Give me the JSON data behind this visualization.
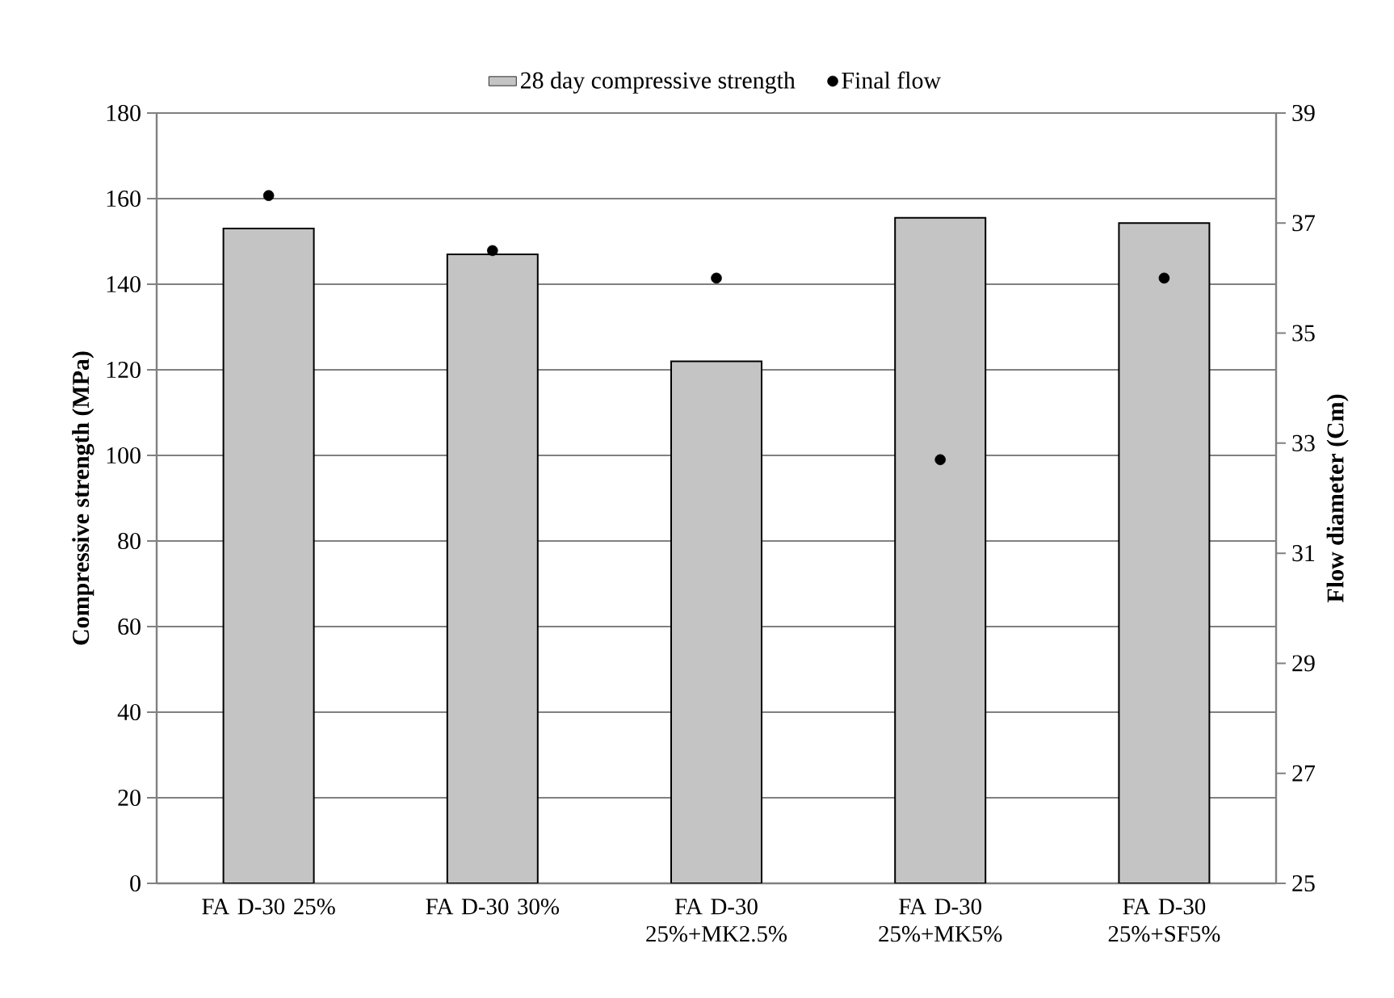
{
  "chart_data": {
    "type": "bar",
    "categories": [
      "FA D-30 25%",
      "FA D-30 30%",
      "FA D-30 25%+MK2.5%",
      "FA D-30 25%+MK5%",
      "FA D-30 25%+SF5%"
    ],
    "ylabel": "Compressive strength (MPa)",
    "y2label": "Flow  diameter (Cm)",
    "ylim": [
      0,
      180
    ],
    "yticks": [
      0,
      20,
      40,
      60,
      80,
      100,
      120,
      140,
      160,
      180
    ],
    "y2lim": [
      25,
      39
    ],
    "y2ticks": [
      25,
      27,
      29,
      31,
      33,
      35,
      37,
      39
    ],
    "grid": "y",
    "legend": "top",
    "series": [
      {
        "name": "28 day compressive strength",
        "color": "#c4c4c4",
        "values": [
          153,
          147,
          122,
          155.5,
          154.3
        ]
      },
      {
        "name": "Final flow",
        "type": "scatter",
        "axis": "y2",
        "color": "#000000",
        "values": [
          37.5,
          36.5,
          36.0,
          32.7,
          36.0
        ]
      }
    ]
  }
}
